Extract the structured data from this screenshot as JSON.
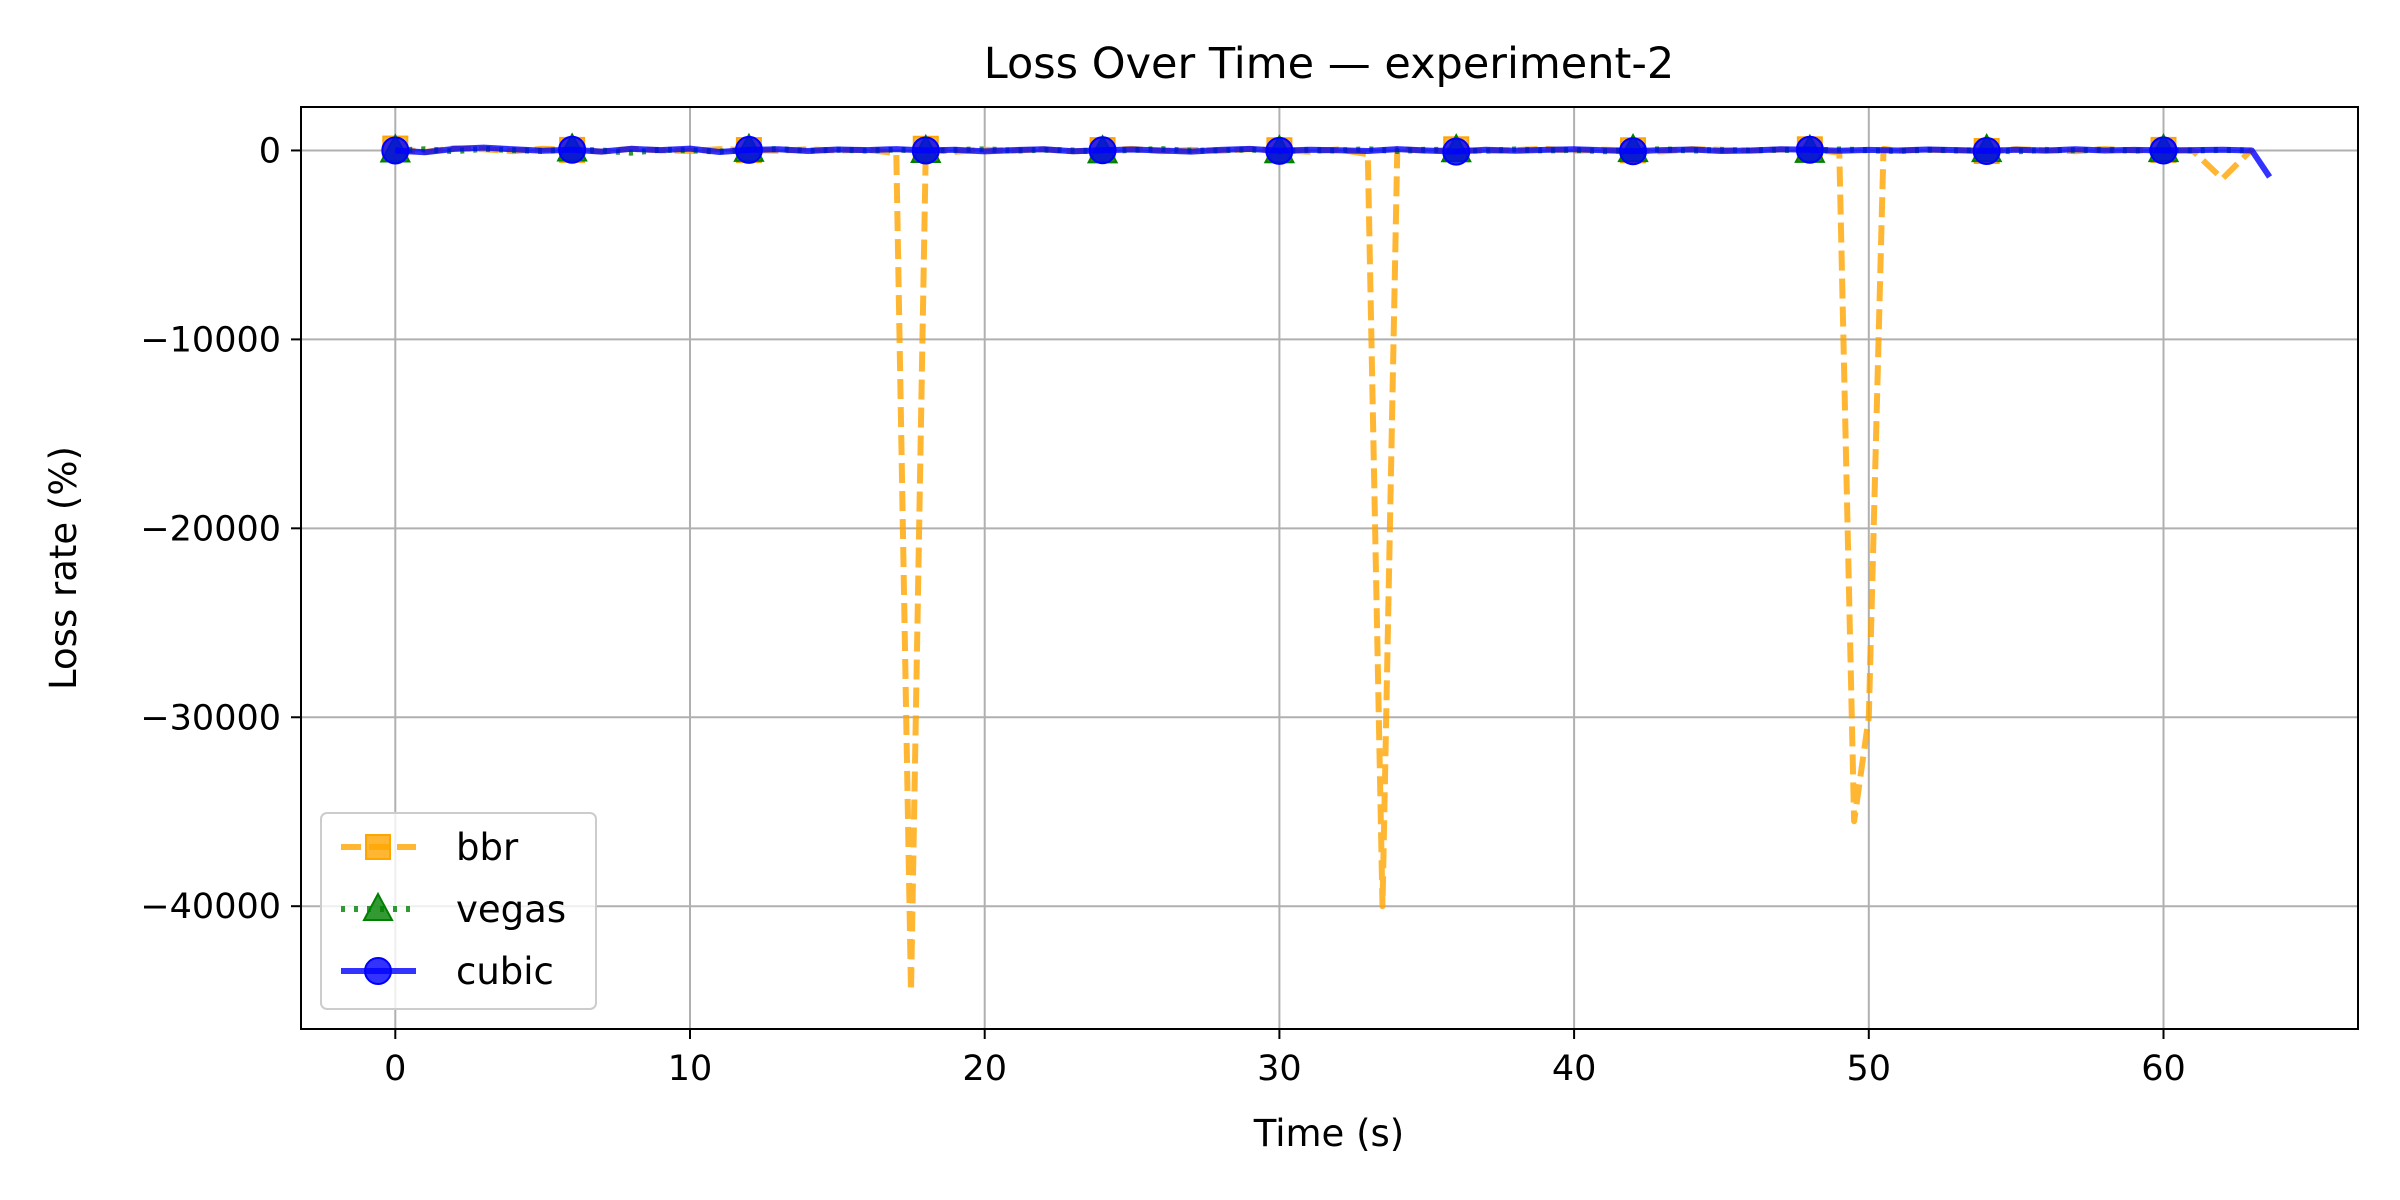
{
  "chart_data": {
    "type": "line",
    "title": "Loss Over Time — experiment-2",
    "xlabel": "Time (s)",
    "ylabel": "Loss rate (%)",
    "xlim": [
      -3.2,
      66.6
    ],
    "ylim": [
      -46500,
      2300
    ],
    "xticks": [
      0,
      10,
      20,
      30,
      40,
      50,
      60
    ],
    "xtick_labels": [
      "0",
      "10",
      "20",
      "30",
      "40",
      "50",
      "60"
    ],
    "yticks": [
      0,
      -10000,
      -20000,
      -30000,
      -40000
    ],
    "ytick_labels": [
      "0",
      "−10000",
      "−20000",
      "−30000",
      "−40000"
    ],
    "grid": true,
    "legend_position": "lower-left",
    "series": [
      {
        "name": "bbr",
        "color": "#FFA500",
        "line_style": "dashed",
        "marker": "square",
        "x": [
          0,
          1,
          2,
          3,
          4,
          5,
          6,
          7,
          8,
          9,
          10,
          11,
          12,
          13,
          14,
          15,
          16,
          17,
          17.5,
          18,
          19,
          20,
          21,
          22,
          23,
          24,
          25,
          26,
          27,
          28,
          29,
          30,
          31,
          32,
          33,
          33.5,
          34,
          35,
          36,
          37,
          38,
          39,
          40,
          41,
          42,
          43,
          44,
          45,
          46,
          47,
          48,
          49,
          49.5,
          50,
          50.5,
          51,
          52,
          53,
          54,
          55,
          56,
          57,
          58,
          59,
          60,
          61,
          62,
          63
        ],
        "y": [
          100,
          -80,
          120,
          60,
          -40,
          90,
          30,
          -60,
          80,
          10,
          -30,
          70,
          20,
          -20,
          60,
          0,
          40,
          -150,
          -44500,
          90,
          -70,
          40,
          -10,
          60,
          -50,
          20,
          80,
          -40,
          30,
          -20,
          70,
          10,
          -60,
          50,
          -200,
          -40000,
          80,
          -30,
          60,
          -40,
          20,
          90,
          -20,
          40,
          10,
          -50,
          70,
          30,
          -10,
          50,
          60,
          -120,
          -35500,
          -30000,
          80,
          -20,
          40,
          10,
          -30,
          60,
          20,
          -40,
          70,
          0,
          30,
          -20,
          -1500,
          60
        ],
        "marker_x": [
          0,
          6,
          12,
          18,
          24,
          30,
          36,
          42,
          48,
          54,
          60
        ]
      },
      {
        "name": "vegas",
        "color": "#008000",
        "line_style": "dotted",
        "marker": "triangle",
        "x": [
          0,
          1,
          2,
          3,
          4,
          5,
          6,
          7,
          8,
          9,
          10,
          11,
          12,
          13,
          14,
          15,
          16,
          17,
          18,
          19,
          20,
          21,
          22,
          23,
          24,
          25,
          26,
          27,
          28,
          29,
          30,
          31,
          32,
          33,
          34,
          35,
          36,
          37,
          38,
          39,
          40,
          41,
          42,
          43,
          44,
          45,
          46,
          47,
          48,
          49,
          50,
          51,
          52,
          53,
          54,
          55,
          56,
          57,
          58,
          59,
          60,
          61,
          62,
          63
        ],
        "y": [
          0,
          60,
          -40,
          80,
          20,
          -30,
          50,
          0,
          -120,
          40,
          10,
          -60,
          30,
          70,
          -20,
          40,
          0,
          50,
          -30,
          20,
          60,
          -10,
          40,
          0,
          -50,
          30,
          70,
          -20,
          10,
          50,
          -40,
          20,
          0,
          60,
          -30,
          40,
          10,
          -20,
          50,
          0,
          30,
          -40,
          20,
          60,
          -10,
          30,
          0,
          40,
          -20,
          50,
          10,
          -30,
          40,
          0,
          20,
          -50,
          30,
          10,
          40,
          -10,
          20,
          0,
          30,
          0
        ],
        "marker_x": [
          0,
          6,
          12,
          18,
          24,
          30,
          36,
          42,
          48,
          54,
          60
        ]
      },
      {
        "name": "cubic",
        "color": "#0000FF",
        "line_style": "solid",
        "marker": "circle",
        "x": [
          0,
          1,
          2,
          3,
          4,
          5,
          6,
          7,
          8,
          9,
          10,
          11,
          12,
          13,
          14,
          15,
          16,
          17,
          18,
          19,
          20,
          21,
          22,
          23,
          24,
          25,
          26,
          27,
          28,
          29,
          30,
          31,
          32,
          33,
          34,
          35,
          36,
          37,
          38,
          39,
          40,
          41,
          42,
          43,
          44,
          45,
          46,
          47,
          48,
          49,
          50,
          51,
          52,
          53,
          54,
          55,
          56,
          57,
          58,
          59,
          60,
          61,
          62,
          63,
          63.6
        ],
        "y": [
          0,
          -100,
          80,
          150,
          60,
          -20,
          40,
          -60,
          90,
          20,
          100,
          -80,
          30,
          60,
          -30,
          50,
          20,
          70,
          0,
          40,
          -50,
          20,
          60,
          -40,
          10,
          50,
          0,
          -60,
          30,
          80,
          -20,
          40,
          10,
          -30,
          70,
          0,
          -60,
          40,
          -20,
          30,
          60,
          10,
          -40,
          20,
          50,
          -30,
          0,
          60,
          40,
          -20,
          30,
          0,
          50,
          20,
          -30,
          40,
          -10,
          60,
          0,
          30,
          0,
          20,
          40,
          0,
          -1400
        ],
        "marker_x": [
          0,
          6,
          12,
          18,
          24,
          30,
          36,
          42,
          48,
          54,
          60
        ]
      }
    ]
  }
}
